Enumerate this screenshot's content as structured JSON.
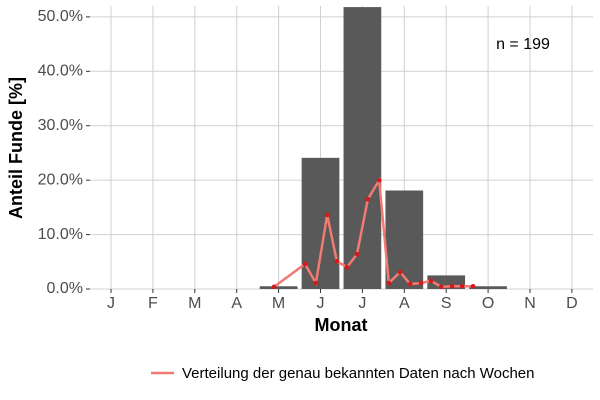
{
  "chart_data": {
    "type": "bar",
    "categories": [
      "J",
      "F",
      "M",
      "A",
      "M",
      "J",
      "J",
      "A",
      "S",
      "O",
      "N",
      "D"
    ],
    "values": [
      null,
      null,
      null,
      null,
      0.5,
      24.1,
      51.8,
      18.1,
      2.5,
      0.5,
      null,
      null
    ],
    "color": "#595959",
    "ylim": [
      0,
      52
    ],
    "yticks": [
      {
        "value": 0,
        "label": "0.0%"
      },
      {
        "value": 10,
        "label": "10.0%"
      },
      {
        "value": 20,
        "label": "20.0%"
      },
      {
        "value": 30,
        "label": "30.0%"
      },
      {
        "value": 40,
        "label": "40.0%"
      },
      {
        "value": 50,
        "label": "50.0%"
      }
    ],
    "grid": true,
    "xlabel": "Monat",
    "ylabel": "Anteil Funde [%]",
    "annotation": "n = 199",
    "legend": "bottom",
    "line": {
      "name": "Verteilung der genau bekannten Daten nach Wochen",
      "color": "#f07b72",
      "point_color": "#d7191c",
      "x": [
        4.89,
        5.63,
        5.89,
        6.16,
        6.39,
        6.63,
        6.87,
        7.13,
        7.4,
        7.63,
        7.9,
        8.14,
        8.4,
        8.64,
        8.88,
        9.14,
        9.38,
        9.64
      ],
      "values": [
        0.4,
        4.6,
        1.1,
        13.6,
        5.1,
        4.0,
        6.4,
        16.5,
        20.0,
        1.1,
        3.1,
        0.9,
        1.1,
        1.5,
        0.4,
        0.5,
        0.5,
        0.5
      ]
    }
  }
}
